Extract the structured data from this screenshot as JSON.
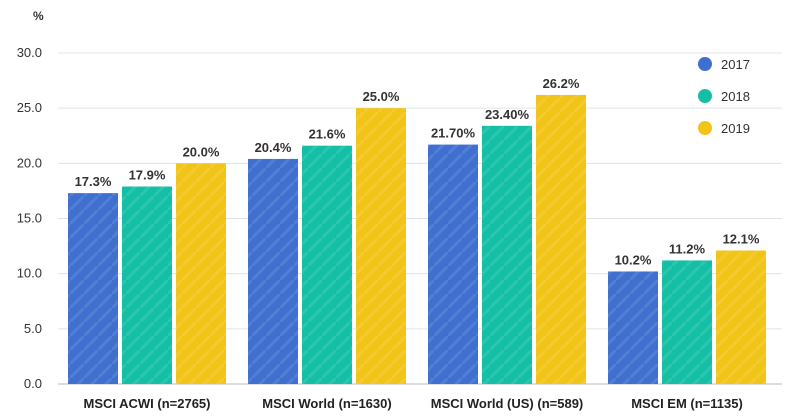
{
  "chart_data": {
    "type": "bar",
    "ylabel": "%",
    "ylim": [
      0,
      30
    ],
    "yticks": [
      "0.0",
      "5.0",
      "10.0",
      "15.0",
      "20.0",
      "25.0",
      "30.0"
    ],
    "grid": true,
    "legend_position": "right",
    "categories": [
      "MSCI ACWI (n=2765)",
      "MSCI World (n=1630)",
      "MSCI World (US) (n=589)",
      "MSCI EM (n=1135)"
    ],
    "series": [
      {
        "name": "2017",
        "color": "#3f6fcf",
        "values": [
          17.3,
          20.4,
          21.7,
          10.2
        ],
        "labels": [
          "17.3%",
          "20.4%",
          "21.70%",
          "10.2%"
        ]
      },
      {
        "name": "2018",
        "color": "#14bfa6",
        "values": [
          17.9,
          21.6,
          23.4,
          11.2
        ],
        "labels": [
          "17.9%",
          "21.6%",
          "23.40%",
          "11.2%"
        ]
      },
      {
        "name": "2019",
        "color": "#f2c418",
        "values": [
          20.0,
          25.0,
          26.2,
          12.1
        ],
        "labels": [
          "20.0%",
          "25.0%",
          "26.2%",
          "12.1%"
        ]
      }
    ]
  }
}
